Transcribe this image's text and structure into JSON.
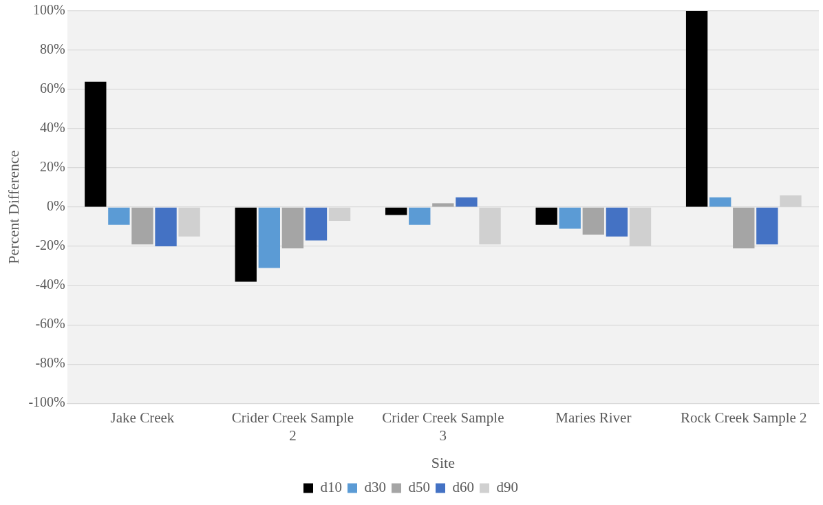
{
  "chart_data": {
    "type": "bar",
    "xlabel": "Site",
    "ylabel": "Percent Difference",
    "categories": [
      "Jake Creek",
      "Crider Creek Sample 2",
      "Crider Creek Sample 3",
      "Maries River",
      "Rock Creek Sample 2"
    ],
    "series": [
      {
        "name": "d10",
        "color": "#000000",
        "values": [
          64,
          -38,
          -4,
          -9,
          100
        ]
      },
      {
        "name": "d30",
        "color": "#5b9bd5",
        "values": [
          -9,
          -31,
          -9,
          -11,
          5
        ]
      },
      {
        "name": "d50",
        "color": "#a5a5a5",
        "values": [
          -19,
          -21,
          2,
          -14,
          -21
        ]
      },
      {
        "name": "d60",
        "color": "#4472c4",
        "values": [
          -20,
          -17,
          5,
          -15,
          -19
        ]
      },
      {
        "name": "d90",
        "color": "#d0d0d0",
        "values": [
          -15,
          -7,
          -19,
          -20,
          6
        ]
      }
    ],
    "ylim": [
      -100,
      100
    ],
    "yticks": [
      {
        "value": -100,
        "label": "-100%"
      },
      {
        "value": -80,
        "label": "-80%"
      },
      {
        "value": -60,
        "label": "-60%"
      },
      {
        "value": -40,
        "label": "-40%"
      },
      {
        "value": -20,
        "label": "-20%"
      },
      {
        "value": 0,
        "label": "0%"
      },
      {
        "value": 20,
        "label": "20%"
      },
      {
        "value": 40,
        "label": "40%"
      },
      {
        "value": 60,
        "label": "60%"
      },
      {
        "value": 80,
        "label": "80%"
      },
      {
        "value": 100,
        "label": "100%"
      }
    ],
    "grid": "y",
    "legend": "bottom"
  }
}
